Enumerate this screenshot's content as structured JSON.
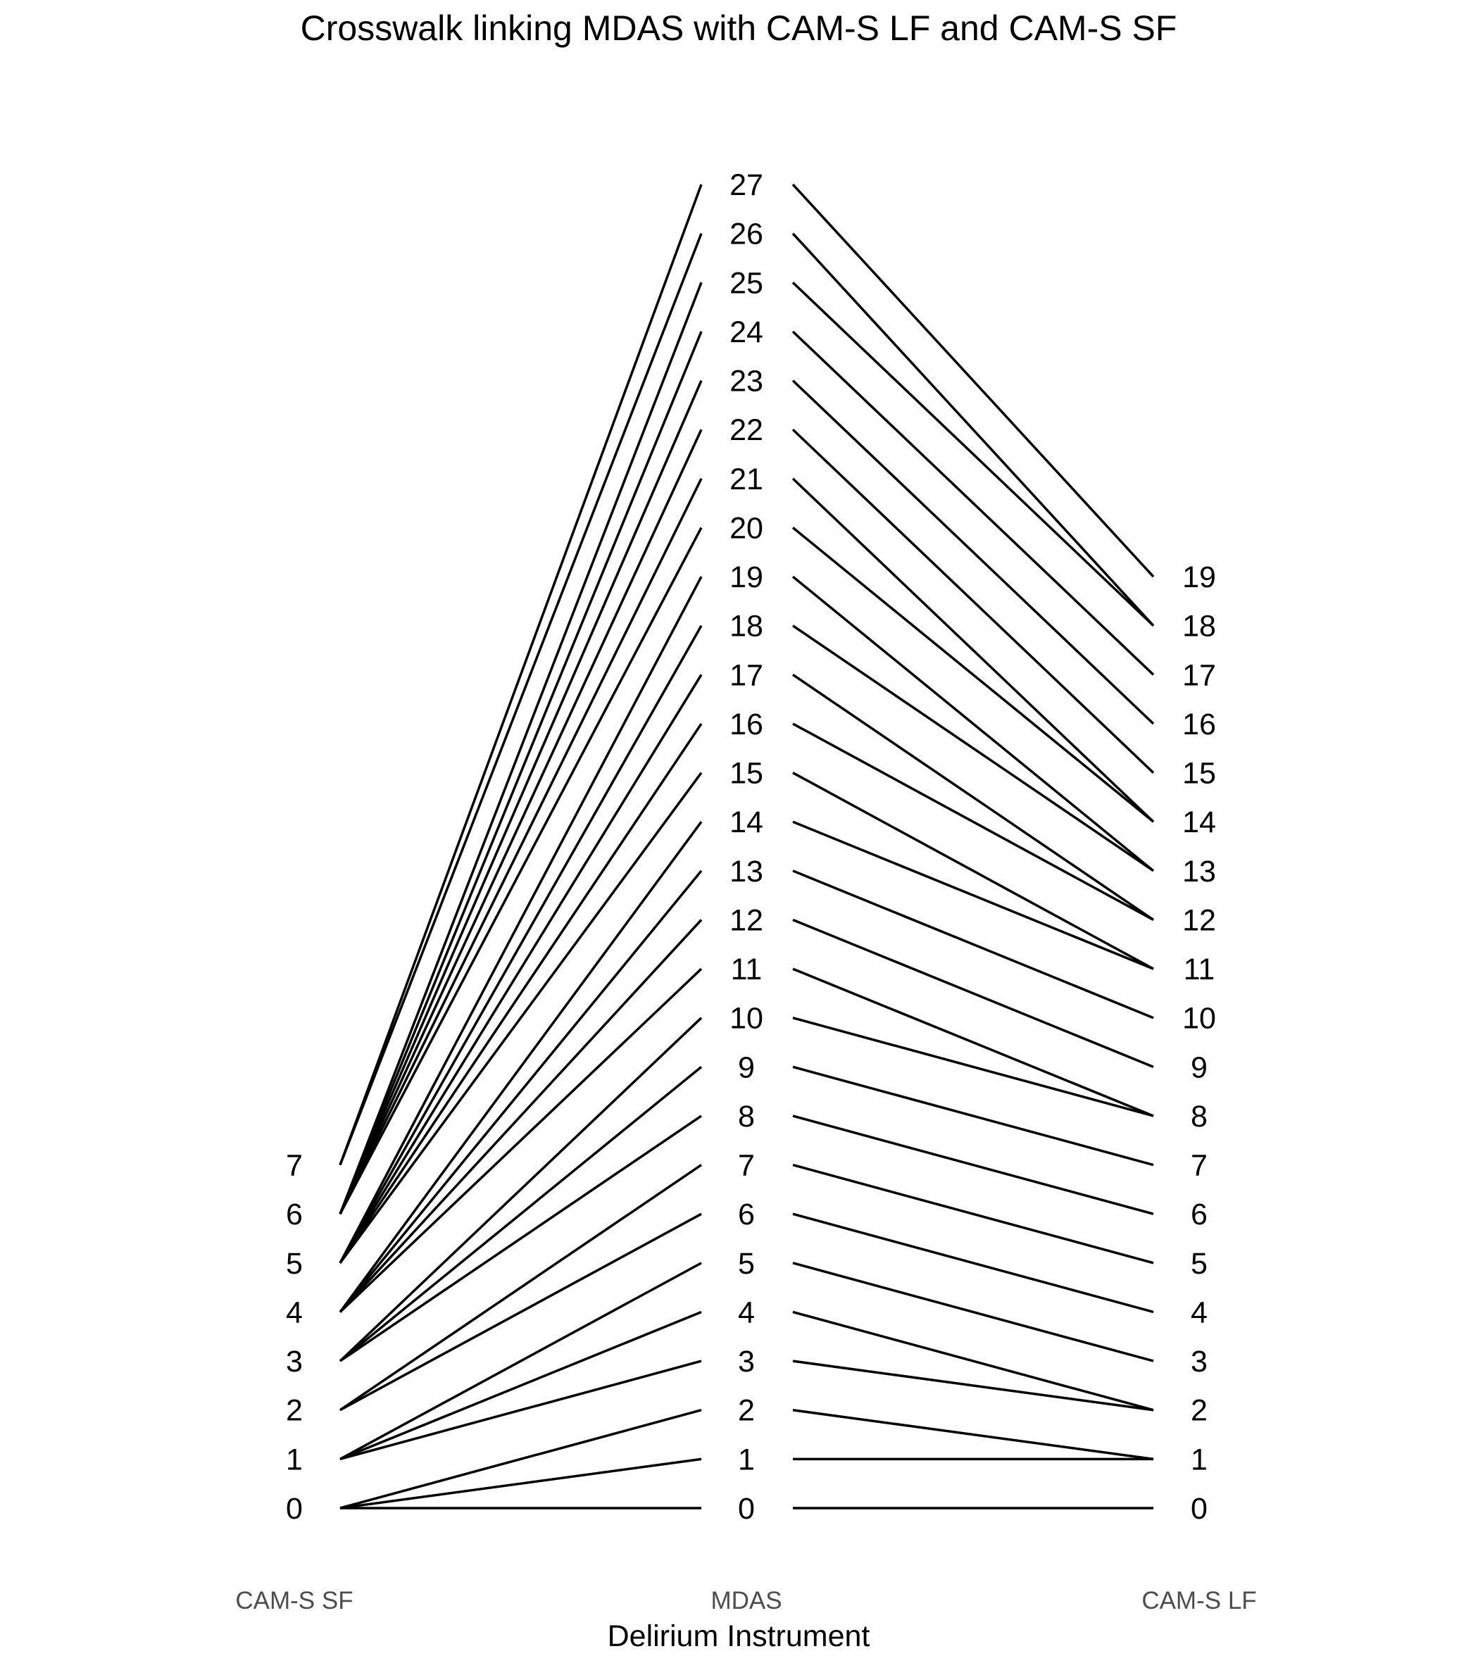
{
  "chart_data": {
    "type": "crosswalk",
    "title": "Crosswalk linking MDAS with CAM-S LF and CAM-S SF",
    "xlabel": "Delirium Instrument",
    "instruments": [
      "CAM-S SF",
      "MDAS",
      "CAM-S LF"
    ],
    "scales": {
      "CAM-S SF": [
        0,
        1,
        2,
        3,
        4,
        5,
        6,
        7
      ],
      "MDAS": [
        0,
        1,
        2,
        3,
        4,
        5,
        6,
        7,
        8,
        9,
        10,
        11,
        12,
        13,
        14,
        15,
        16,
        17,
        18,
        19,
        20,
        21,
        22,
        23,
        24,
        25,
        26,
        27
      ],
      "CAM-S LF": [
        0,
        1,
        2,
        3,
        4,
        5,
        6,
        7,
        8,
        9,
        10,
        11,
        12,
        13,
        14,
        15,
        16,
        17,
        18,
        19
      ]
    },
    "y_range": [
      0,
      27
    ],
    "links_mdas_to_cams_sf": [
      {
        "mdas": 0,
        "cams_sf": 0
      },
      {
        "mdas": 1,
        "cams_sf": 0
      },
      {
        "mdas": 2,
        "cams_sf": 0
      },
      {
        "mdas": 3,
        "cams_sf": 1
      },
      {
        "mdas": 4,
        "cams_sf": 1
      },
      {
        "mdas": 5,
        "cams_sf": 1
      },
      {
        "mdas": 6,
        "cams_sf": 2
      },
      {
        "mdas": 7,
        "cams_sf": 2
      },
      {
        "mdas": 8,
        "cams_sf": 3
      },
      {
        "mdas": 9,
        "cams_sf": 3
      },
      {
        "mdas": 10,
        "cams_sf": 3
      },
      {
        "mdas": 11,
        "cams_sf": 4
      },
      {
        "mdas": 12,
        "cams_sf": 4
      },
      {
        "mdas": 13,
        "cams_sf": 4
      },
      {
        "mdas": 14,
        "cams_sf": 4
      },
      {
        "mdas": 15,
        "cams_sf": 5
      },
      {
        "mdas": 16,
        "cams_sf": 5
      },
      {
        "mdas": 17,
        "cams_sf": 5
      },
      {
        "mdas": 18,
        "cams_sf": 5
      },
      {
        "mdas": 19,
        "cams_sf": 5
      },
      {
        "mdas": 20,
        "cams_sf": 6
      },
      {
        "mdas": 21,
        "cams_sf": 6
      },
      {
        "mdas": 22,
        "cams_sf": 6
      },
      {
        "mdas": 23,
        "cams_sf": 6
      },
      {
        "mdas": 24,
        "cams_sf": 6
      },
      {
        "mdas": 25,
        "cams_sf": 6
      },
      {
        "mdas": 26,
        "cams_sf": 7
      },
      {
        "mdas": 27,
        "cams_sf": 7
      }
    ],
    "links_mdas_to_cams_lf": [
      {
        "mdas": 0,
        "cams_lf": 0
      },
      {
        "mdas": 1,
        "cams_lf": 1
      },
      {
        "mdas": 2,
        "cams_lf": 1
      },
      {
        "mdas": 3,
        "cams_lf": 2
      },
      {
        "mdas": 4,
        "cams_lf": 2
      },
      {
        "mdas": 5,
        "cams_lf": 3
      },
      {
        "mdas": 6,
        "cams_lf": 4
      },
      {
        "mdas": 7,
        "cams_lf": 5
      },
      {
        "mdas": 8,
        "cams_lf": 6
      },
      {
        "mdas": 9,
        "cams_lf": 7
      },
      {
        "mdas": 10,
        "cams_lf": 8
      },
      {
        "mdas": 11,
        "cams_lf": 8
      },
      {
        "mdas": 12,
        "cams_lf": 9
      },
      {
        "mdas": 13,
        "cams_lf": 10
      },
      {
        "mdas": 14,
        "cams_lf": 11
      },
      {
        "mdas": 15,
        "cams_lf": 11
      },
      {
        "mdas": 16,
        "cams_lf": 12
      },
      {
        "mdas": 17,
        "cams_lf": 12
      },
      {
        "mdas": 18,
        "cams_lf": 13
      },
      {
        "mdas": 19,
        "cams_lf": 13
      },
      {
        "mdas": 20,
        "cams_lf": 14
      },
      {
        "mdas": 21,
        "cams_lf": 14
      },
      {
        "mdas": 22,
        "cams_lf": 15
      },
      {
        "mdas": 23,
        "cams_lf": 16
      },
      {
        "mdas": 24,
        "cams_lf": 17
      },
      {
        "mdas": 25,
        "cams_lf": 18
      },
      {
        "mdas": 26,
        "cams_lf": 18
      },
      {
        "mdas": 27,
        "cams_lf": 19
      }
    ],
    "grid": false,
    "legend": "none"
  }
}
